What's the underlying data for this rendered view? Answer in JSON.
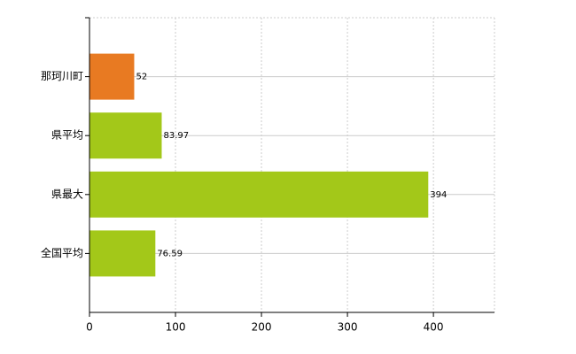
{
  "chart_data": {
    "type": "bar",
    "orientation": "horizontal",
    "categories": [
      "那珂川町",
      "県平均",
      "県最大",
      "全国平均"
    ],
    "values": [
      52,
      83.97,
      394,
      76.59
    ],
    "colors": [
      "#e87a22",
      "#a3c819",
      "#a3c819",
      "#a3c819"
    ],
    "xlim": [
      0,
      471
    ],
    "xticks": [
      0,
      100,
      200,
      300,
      400
    ],
    "grid": true
  }
}
